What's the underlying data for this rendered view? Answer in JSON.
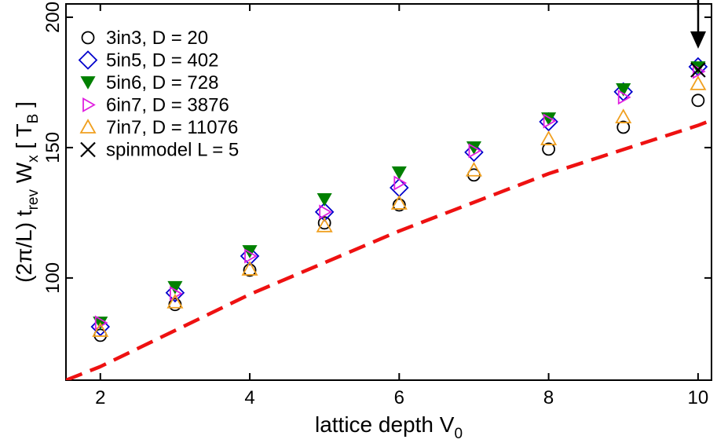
{
  "chart_data": {
    "type": "scatter",
    "xlabel_parts": [
      {
        "text": "lattice depth V"
      },
      {
        "text": "0",
        "sub": true
      }
    ],
    "ylabel_parts": [
      {
        "text": "(2π/L) t"
      },
      {
        "text": "rev",
        "sub": true
      },
      {
        "text": " W"
      },
      {
        "text": "x",
        "sub": true
      },
      {
        "text": " [ T"
      },
      {
        "text": "B",
        "sub": true
      },
      {
        "text": " ]"
      }
    ],
    "xlim": [
      1.54,
      10.18
    ],
    "ylim": [
      60.8,
      205.1
    ],
    "xticks": [
      2,
      4,
      6,
      8,
      10
    ],
    "yticks": [
      100,
      150,
      200
    ],
    "legend": "upper left",
    "series": [
      {
        "name": "3in3, D = 20",
        "color": "#000000",
        "marker": "circle",
        "filled": false,
        "x": [
          2,
          3,
          4,
          5,
          6,
          7,
          8,
          9,
          10
        ],
        "values": [
          78.0,
          89.8,
          103.0,
          121.1,
          128.0,
          139.5,
          149.4,
          157.8,
          168.1
        ]
      },
      {
        "name": "5in5, D = 402",
        "color": "#0000cc",
        "marker": "diamond",
        "filled": false,
        "x": [
          2,
          3,
          4,
          5,
          6,
          7,
          8,
          9,
          10
        ],
        "values": [
          81.3,
          94.3,
          108.4,
          125.3,
          134.6,
          148.2,
          159.9,
          171.4,
          181.0
        ]
      },
      {
        "name": "5in6, D = 728",
        "color": "#008000",
        "marker": "triangle-down",
        "filled": true,
        "x": [
          2,
          3,
          4,
          5,
          6,
          7,
          8,
          9,
          10
        ],
        "values": [
          82.8,
          96.4,
          110.2,
          130.1,
          140.4,
          150.0,
          161.1,
          172.3,
          180.7
        ]
      },
      {
        "name": "6in7, D = 3876",
        "color": "#e020e0",
        "marker": "triangle-right",
        "filled": false,
        "x": [
          2,
          3,
          4,
          5,
          6,
          7,
          8,
          9,
          10
        ],
        "values": [
          82.8,
          94.0,
          108.4,
          125.3,
          136.4,
          148.8,
          160.2,
          169.3,
          179.2
        ]
      },
      {
        "name": "7in7, D = 11076",
        "color": "#f0a020",
        "marker": "triangle-up",
        "filled": false,
        "x": [
          2,
          3,
          4,
          5,
          6,
          7,
          8,
          9,
          10
        ],
        "values": [
          79.8,
          90.7,
          103.3,
          119.9,
          128.6,
          141.3,
          153.3,
          161.7,
          174.4
        ]
      },
      {
        "name": "spinmodel L = 5",
        "color": "#000000",
        "marker": "x",
        "filled": false,
        "x": [
          10
        ],
        "values": [
          179.8
        ]
      },
      {
        "color": "#ee1111",
        "marker": "dashed-line",
        "x": [
          1.54,
          2,
          4,
          6,
          8,
          10,
          10.18
        ],
        "values": [
          60.8,
          66.0,
          93.7,
          118.0,
          140.0,
          158.5,
          160.5
        ]
      }
    ]
  }
}
